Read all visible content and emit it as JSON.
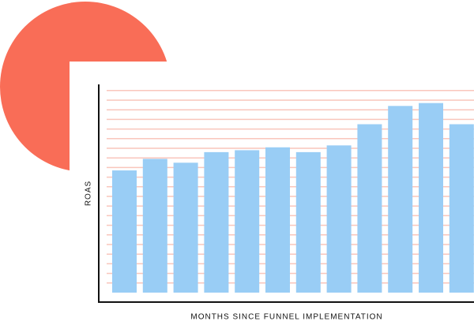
{
  "chart_data": {
    "type": "bar",
    "x_label": "MONTHS SINCE FUNNEL IMPLEMENTATION",
    "y_label": "ROAS",
    "categories": [
      null,
      null,
      null,
      null,
      null,
      null,
      null,
      null,
      null,
      null,
      null,
      null
    ],
    "values": [
      12.7,
      13.9,
      13.5,
      14.6,
      14.8,
      15.1,
      14.6,
      15.3,
      17.5,
      19.4,
      19.7,
      17.5
    ],
    "color": "#99cdf5",
    "ylim": [
      0,
      21
    ],
    "yticks": [
      1,
      2,
      3,
      4,
      5,
      6,
      7,
      8,
      9,
      10,
      11,
      12,
      13,
      14,
      15,
      16,
      17,
      18,
      19,
      20,
      21
    ],
    "grid": true,
    "grid_color": "#f9c6bc"
  }
}
